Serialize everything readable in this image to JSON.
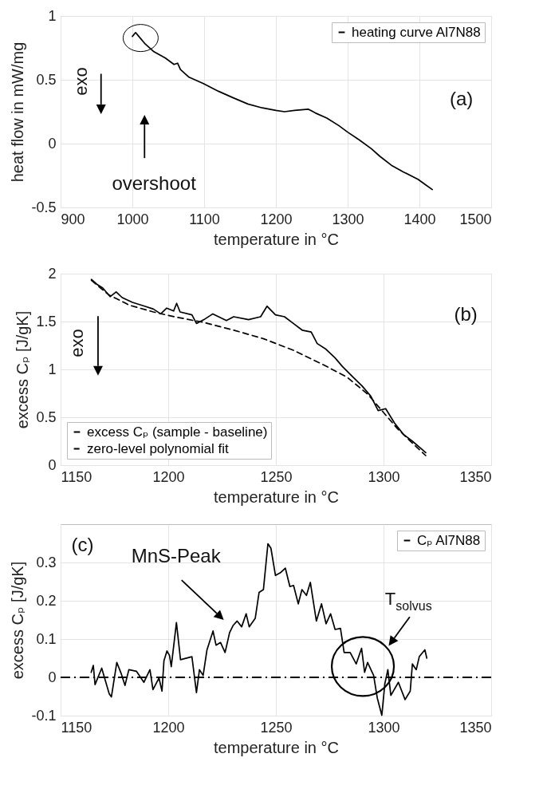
{
  "chart_data": [
    {
      "type": "line",
      "xlabel": "temperature in °C",
      "ylabel": "heat flow in mW/mg",
      "xlim": [
        900,
        1500
      ],
      "ylim": [
        -0.5,
        1
      ],
      "xticks": [
        900,
        1000,
        1100,
        1200,
        1300,
        1400,
        1500
      ],
      "yticks": [
        -0.5,
        0,
        0.5,
        1
      ],
      "grid": true,
      "legend": "top right",
      "annotations": [
        "exo",
        "overshoot",
        "(a)"
      ],
      "series": [
        {
          "name": "heating curve Al7N88",
          "color": "#000000",
          "line_style": "solid",
          "x": [
            1000,
            1004.5,
            1009,
            1018,
            1030,
            1046,
            1058,
            1063,
            1067,
            1079,
            1099,
            1120,
            1140,
            1161,
            1181,
            1200,
            1212,
            1226,
            1245,
            1255,
            1271,
            1288,
            1300,
            1316,
            1333,
            1345,
            1361,
            1377,
            1398,
            1408,
            1418
          ],
          "values": [
            0.84,
            0.87,
            0.84,
            0.78,
            0.72,
            0.67,
            0.62,
            0.63,
            0.58,
            0.52,
            0.47,
            0.41,
            0.36,
            0.31,
            0.28,
            0.26,
            0.25,
            0.26,
            0.27,
            0.24,
            0.2,
            0.14,
            0.09,
            0.03,
            -0.04,
            -0.1,
            -0.17,
            -0.22,
            -0.28,
            -0.32,
            -0.36
          ]
        }
      ]
    },
    {
      "type": "line",
      "xlabel": "temperature in °C",
      "ylabel": "excess Cₚ [J/gK]",
      "xlim": [
        1150,
        1350
      ],
      "ylim": [
        0,
        2
      ],
      "xticks": [
        1150,
        1200,
        1250,
        1300,
        1350
      ],
      "yticks": [
        0,
        0.5,
        1,
        1.5,
        2
      ],
      "grid": true,
      "legend": "bottom left",
      "annotations": [
        "exo",
        "(b)"
      ],
      "series": [
        {
          "name": "excess Cₚ (sample - baseline)",
          "color": "#000000",
          "line_style": "solid",
          "x": [
            1164.3,
            1166.8,
            1169.6,
            1173,
            1175.8,
            1178.6,
            1183.4,
            1189,
            1193.1,
            1196.5,
            1199.3,
            1202.5,
            1203.9,
            1205.5,
            1211,
            1213.1,
            1216.6,
            1220.7,
            1227,
            1230.4,
            1237.3,
            1242.9,
            1245.9,
            1249.8,
            1254,
            1258.1,
            1262.2,
            1266.4,
            1269.2,
            1273.3,
            1277.5,
            1280.9,
            1285.8,
            1289.9,
            1294.1,
            1297.5,
            1301,
            1305.1,
            1309.3,
            1313.4,
            1317.6,
            1319.6
          ],
          "values": [
            1.94,
            1.89,
            1.85,
            1.76,
            1.81,
            1.75,
            1.7,
            1.66,
            1.63,
            1.58,
            1.64,
            1.61,
            1.69,
            1.6,
            1.57,
            1.48,
            1.52,
            1.58,
            1.51,
            1.55,
            1.52,
            1.55,
            1.66,
            1.57,
            1.55,
            1.48,
            1.41,
            1.39,
            1.27,
            1.21,
            1.12,
            1.03,
            0.92,
            0.83,
            0.72,
            0.57,
            0.59,
            0.44,
            0.32,
            0.25,
            0.17,
            0.13
          ]
        },
        {
          "name": "zero-level polynomial fit",
          "color": "#000000",
          "line_style": "dashed",
          "x": [
            1164.3,
            1172.3,
            1182,
            1193.1,
            1202.8,
            1216.6,
            1230.4,
            1244.3,
            1258.1,
            1271.9,
            1283,
            1292.7,
            1299.6,
            1306.5,
            1313.4,
            1319.6
          ],
          "values": [
            1.93,
            1.78,
            1.67,
            1.6,
            1.55,
            1.49,
            1.41,
            1.32,
            1.2,
            1.05,
            0.92,
            0.74,
            0.56,
            0.38,
            0.23,
            0.1
          ]
        }
      ]
    },
    {
      "type": "line",
      "xlabel": "temperature in °C",
      "ylabel": "excess Cₚ [J/gK]",
      "xlim": [
        1150,
        1350
      ],
      "ylim": [
        -0.1,
        0.4
      ],
      "xticks": [
        1150,
        1200,
        1250,
        1300,
        1350
      ],
      "yticks": [
        -0.1,
        0,
        0.1,
        0.2,
        0.3
      ],
      "grid": true,
      "legend": "top right",
      "annotations": [
        "(c)",
        "MnS-Peak",
        "T$_{solvus}$"
      ],
      "ref_lines": [
        {
          "axis": "y",
          "value": 0,
          "color": "#000000",
          "line_style": "dashdot"
        }
      ],
      "series": [
        {
          "name": "Cₚ Al7N88",
          "color": "#000000",
          "line_style": "solid",
          "x": [
            1164.2,
            1165.2,
            1166,
            1169.1,
            1172.6,
            1173.6,
            1176.1,
            1178.2,
            1179.9,
            1181.7,
            1185.2,
            1188.7,
            1191.5,
            1192.9,
            1195.7,
            1197.1,
            1198,
            1199.4,
            1200.6,
            1201.4,
            1203.8,
            1205.7,
            1211,
            1213.1,
            1214.5,
            1216.2,
            1218,
            1220.8,
            1222.2,
            1224.3,
            1226.4,
            1228.5,
            1230.2,
            1232,
            1234.1,
            1236.2,
            1237.6,
            1240.4,
            1242.2,
            1244.2,
            1246.3,
            1247.7,
            1249.8,
            1252.3,
            1254.4,
            1256.5,
            1258.2,
            1260.4,
            1262.1,
            1264.2,
            1266,
            1268.8,
            1271.2,
            1273.3,
            1275.4,
            1277.5,
            1280,
            1281.7,
            1284.5,
            1287.3,
            1289.8,
            1291.2,
            1292.6,
            1295.4,
            1297.1,
            1299.2,
            1300.6,
            1302,
            1303.4,
            1306.9,
            1310,
            1312.4,
            1313.4,
            1315.2,
            1316.6,
            1319.2,
            1320.1
          ],
          "values": [
            0.013,
            0.031,
            -0.019,
            0.024,
            -0.043,
            -0.051,
            0.039,
            0.009,
            -0.021,
            0.02,
            0.016,
            -0.013,
            0.02,
            -0.032,
            -0.002,
            -0.036,
            0.043,
            0.069,
            0.057,
            0.028,
            0.143,
            0.046,
            0.054,
            -0.04,
            0.02,
            0.005,
            0.072,
            0.121,
            0.084,
            0.091,
            0.065,
            0.117,
            0.136,
            0.147,
            0.132,
            0.166,
            0.132,
            0.154,
            0.222,
            0.229,
            0.349,
            0.337,
            0.266,
            0.274,
            0.285,
            0.237,
            0.24,
            0.192,
            0.229,
            0.214,
            0.248,
            0.147,
            0.192,
            0.14,
            0.166,
            0.125,
            0.128,
            0.065,
            0.065,
            0.035,
            0.076,
            0.013,
            0.039,
            0.005,
            -0.054,
            -0.099,
            -0.017,
            0.02,
            -0.047,
            -0.013,
            -0.058,
            -0.036,
            0.035,
            0.02,
            0.054,
            0.072,
            0.05
          ]
        }
      ]
    }
  ]
}
